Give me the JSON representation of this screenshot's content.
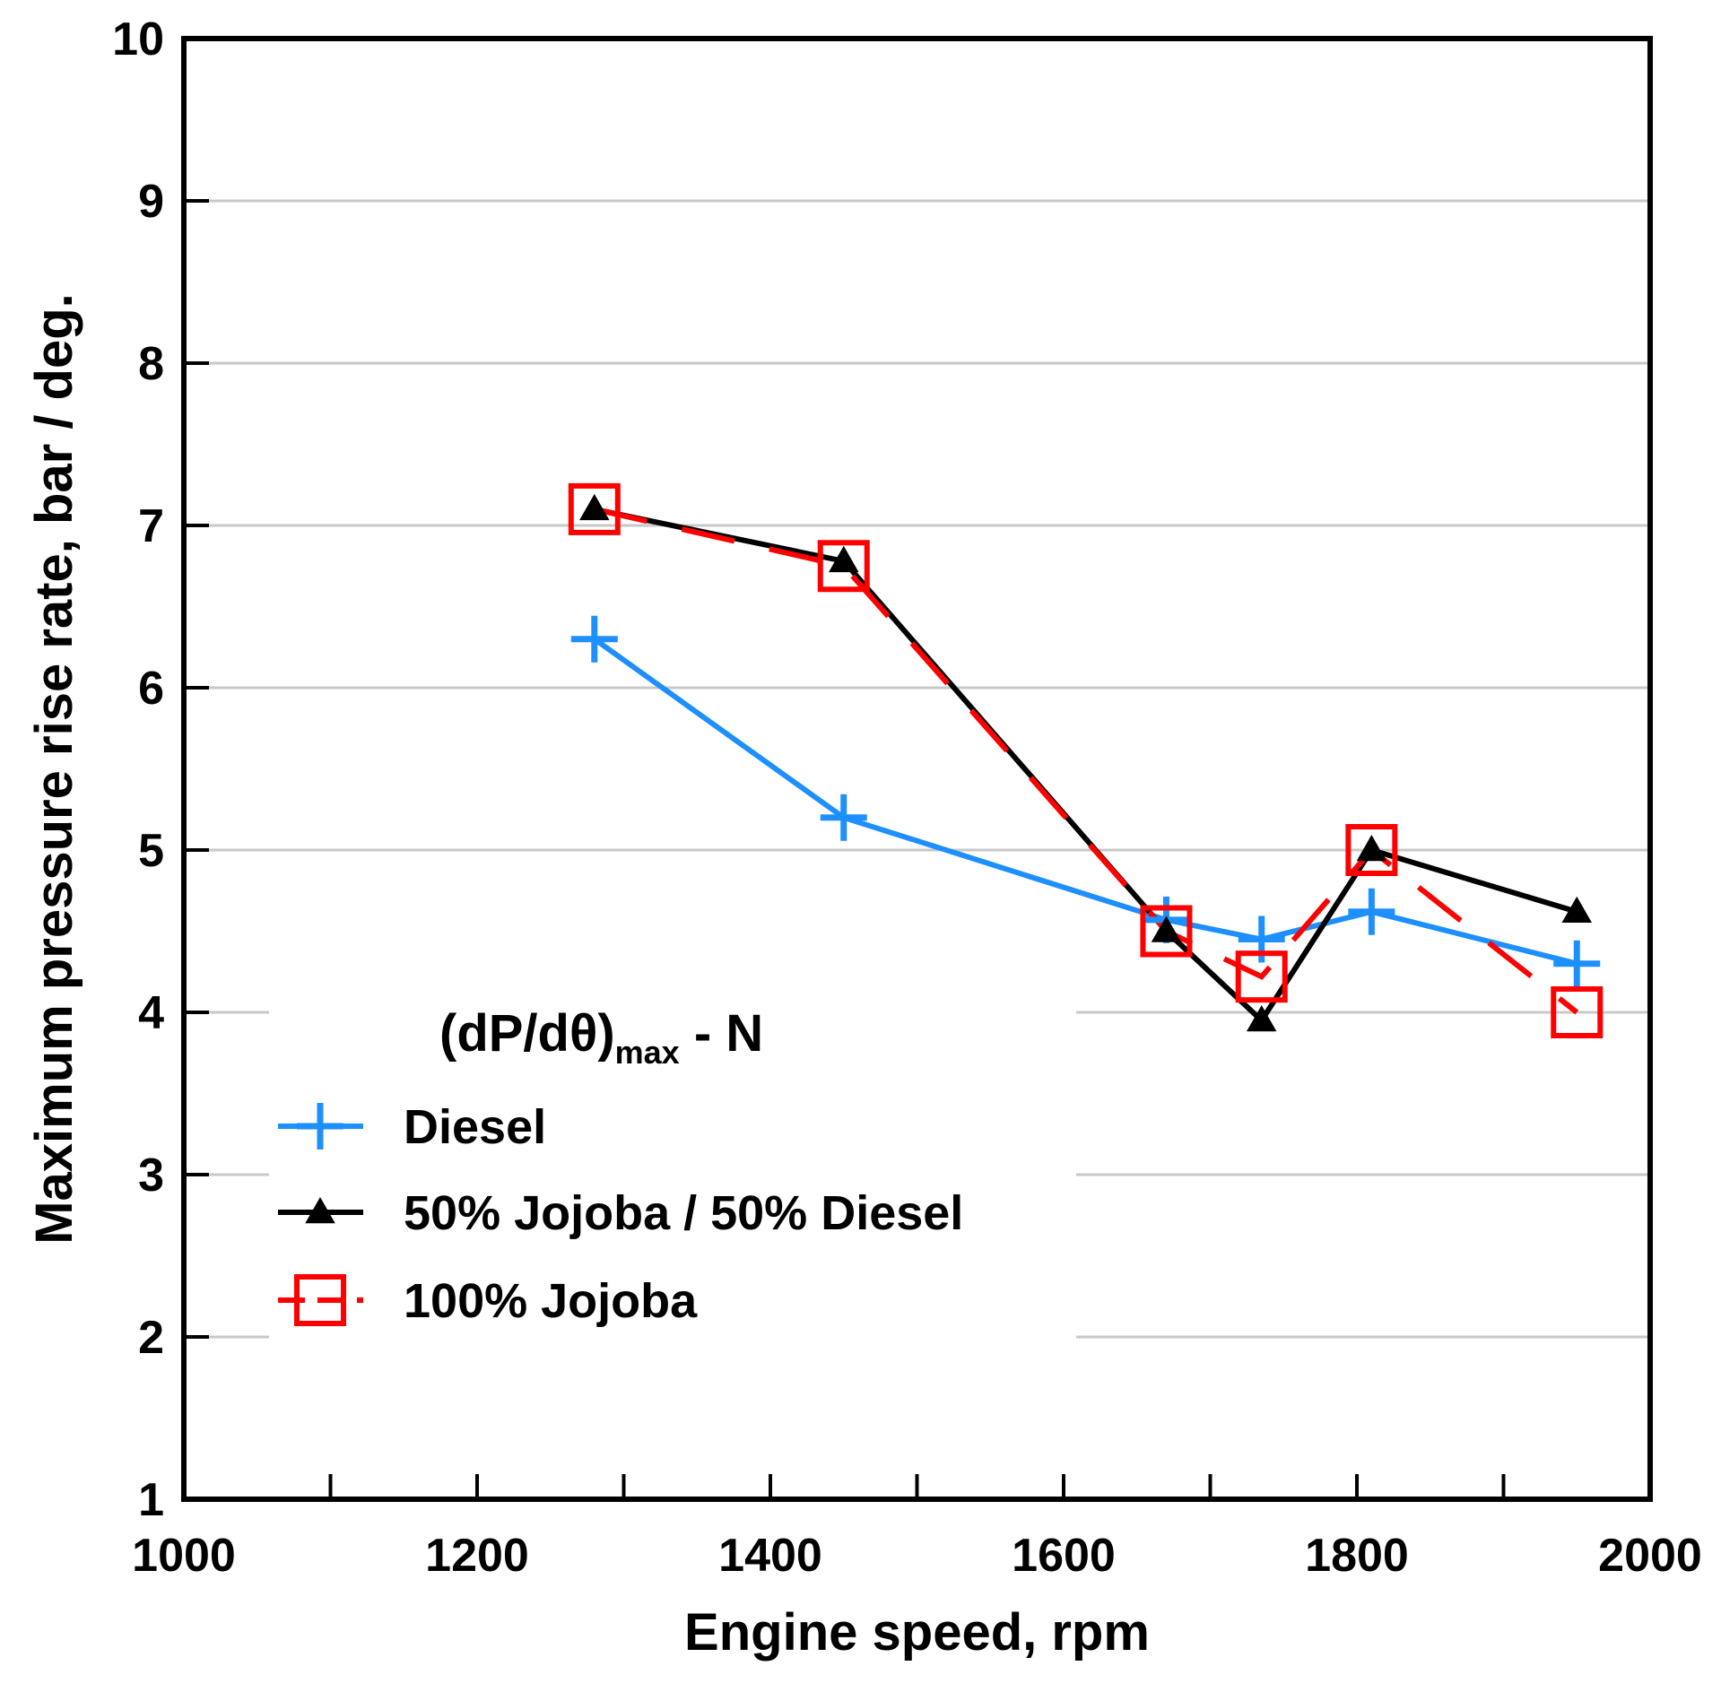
{
  "chart_data": {
    "type": "line",
    "title": "",
    "xlabel": "Engine speed, rpm",
    "ylabel": "Maximum pressure rise rate, bar / deg.",
    "xlim": [
      1000,
      2000
    ],
    "ylim": [
      1,
      10
    ],
    "xticks": [
      1000,
      1200,
      1400,
      1600,
      1800,
      2000
    ],
    "xticks_minor": [
      1100,
      1300,
      1500,
      1700,
      1900
    ],
    "yticks": [
      1,
      2,
      3,
      4,
      5,
      6,
      7,
      8,
      9,
      10
    ],
    "grid": "horizontal",
    "legend": {
      "position": "lower-left",
      "title_main": "(dP/dθ)",
      "title_sub": "max",
      "title_tail": " - N"
    },
    "series": [
      {
        "name": "Diesel",
        "color": "#1E8FFF",
        "marker": "plus",
        "x": [
          1280,
          1450,
          1670,
          1735,
          1810,
          1950
        ],
        "y": [
          6.3,
          5.2,
          4.57,
          4.45,
          4.62,
          4.3
        ]
      },
      {
        "name": "50% Jojoba / 50% Diesel",
        "color": "#000000",
        "marker": "triangle",
        "x": [
          1280,
          1450,
          1670,
          1735,
          1810,
          1950
        ],
        "y": [
          7.1,
          6.78,
          4.5,
          3.95,
          5.0,
          4.62
        ]
      },
      {
        "name": "100% Jojoba",
        "color": "#FF0000",
        "marker": "square",
        "x": [
          1280,
          1450,
          1670,
          1735,
          1810,
          1950
        ],
        "y": [
          7.1,
          6.75,
          4.5,
          4.22,
          5.0,
          4.0
        ]
      }
    ]
  }
}
